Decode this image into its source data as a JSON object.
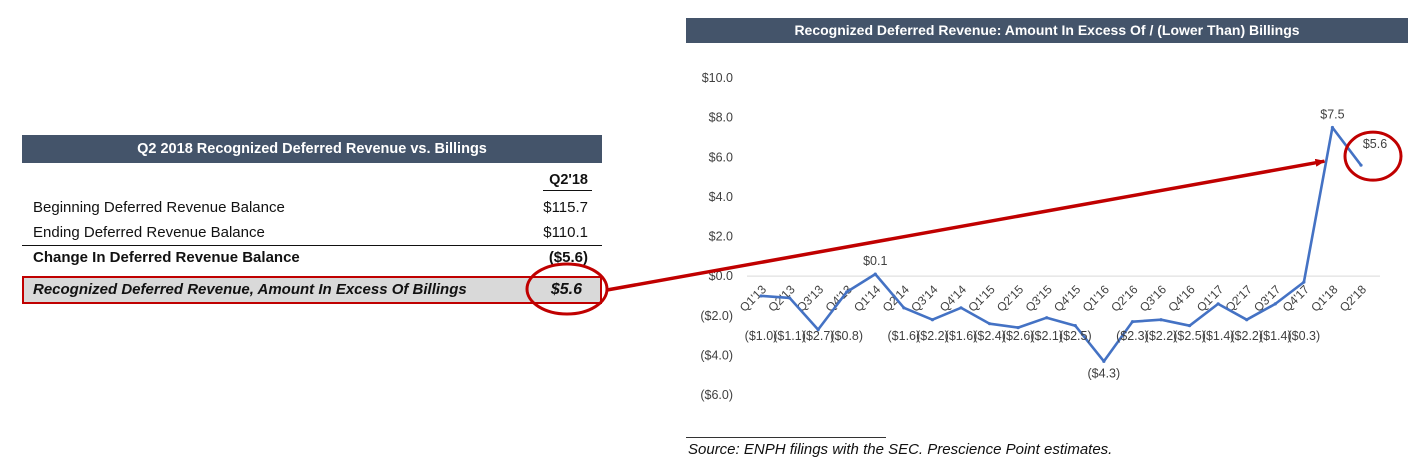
{
  "table": {
    "title": "Q2 2018 Recognized Deferred Revenue vs. Billings",
    "column_header": "Q2'18",
    "rows": [
      {
        "label": "Beginning Deferred Revenue Balance",
        "value": "$115.7"
      },
      {
        "label": "Ending Deferred Revenue Balance",
        "value": "$110.1"
      },
      {
        "label": "Change In Deferred Revenue Balance",
        "value": "($5.6)"
      }
    ],
    "highlight": {
      "label": "Recognized Deferred Revenue, Amount In Excess Of Billings",
      "value": "$5.6"
    }
  },
  "chart_data": {
    "type": "line",
    "title": "Recognized Deferred Revenue: Amount In Excess Of / (Lower Than) Billings",
    "xlabel": "",
    "ylabel": "",
    "ylim": [
      -6,
      10
    ],
    "y_ticks": [
      "($6.0)",
      "($4.0)",
      "($2.0)",
      "$0.0",
      "$2.0",
      "$4.0",
      "$6.0",
      "$8.0",
      "$10.0"
    ],
    "categories": [
      "Q1'13",
      "Q2'13",
      "Q3'13",
      "Q4'13",
      "Q1'14",
      "Q2'14",
      "Q3'14",
      "Q4'14",
      "Q1'15",
      "Q2'15",
      "Q3'15",
      "Q4'15",
      "Q1'16",
      "Q2'16",
      "Q3'16",
      "Q4'16",
      "Q1'17",
      "Q2'17",
      "Q3'17",
      "Q4'17",
      "Q1'18",
      "Q2'18"
    ],
    "series": [
      {
        "color": "#4472c4",
        "values": [
          -1.0,
          -1.1,
          -2.7,
          -0.8,
          0.1,
          -1.6,
          -2.2,
          -1.6,
          -2.4,
          -2.6,
          -2.1,
          -2.5,
          -4.3,
          -2.3,
          -2.2,
          -2.5,
          -1.4,
          -2.2,
          -1.4,
          -0.3,
          7.5,
          5.6
        ],
        "labels": [
          "($1.0)",
          "($1.1)",
          "($2.7)",
          "($0.8)",
          "$0.1",
          "($1.6)",
          "($2.2)",
          "($1.6)",
          "($2.4)",
          "($2.6)",
          "($2.1)",
          "($2.5)",
          "($4.3)",
          "($2.3)",
          "($2.2)",
          "($2.5)",
          "($1.4)",
          "($2.2)",
          "($1.4)",
          "($0.3)",
          "$7.5",
          "$5.6"
        ]
      }
    ],
    "grid": false,
    "annotation_color": "#c00000"
  },
  "source": "Source: ENPH filings with the SEC.  Prescience Point estimates."
}
